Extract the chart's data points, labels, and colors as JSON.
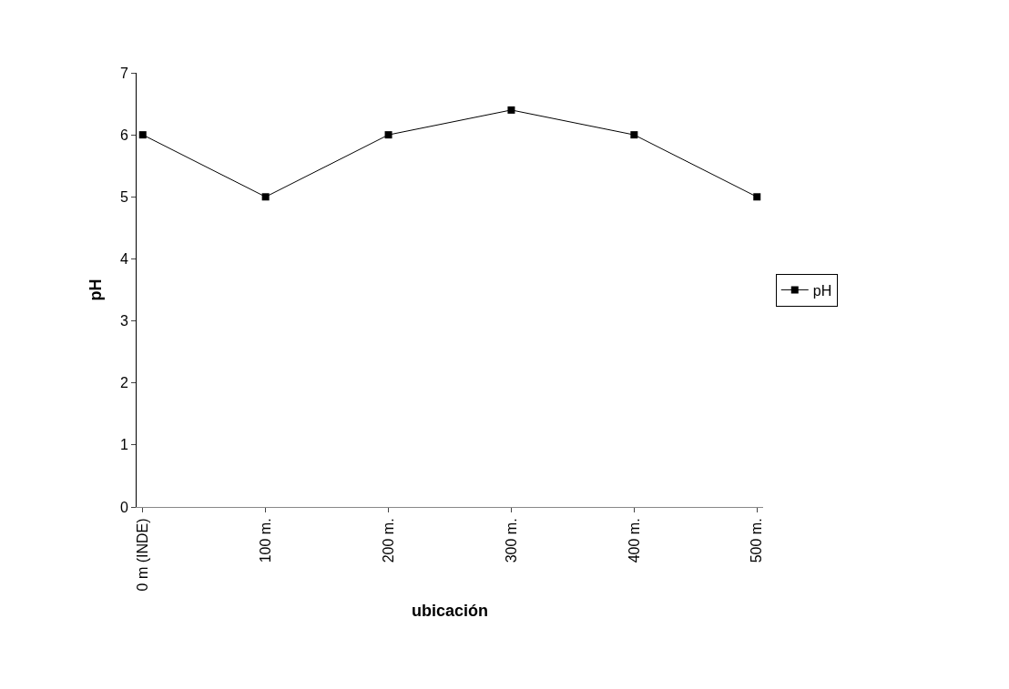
{
  "chart_data": {
    "type": "line",
    "xlabel": "ubicación",
    "ylabel": "pH",
    "categories": [
      "0 m (INDE)",
      "100 m.",
      "200 m.",
      "300 m.",
      "400 m.",
      "500 m."
    ],
    "series": [
      {
        "name": "pH",
        "color": "#000000",
        "values": [
          6,
          5,
          6,
          6.4,
          6,
          5
        ]
      }
    ],
    "ylim": [
      0,
      7
    ],
    "yticks": [
      0,
      1,
      2,
      3,
      4,
      5,
      6,
      7
    ],
    "legend": "right",
    "marker": "square",
    "line_style": "solid"
  }
}
